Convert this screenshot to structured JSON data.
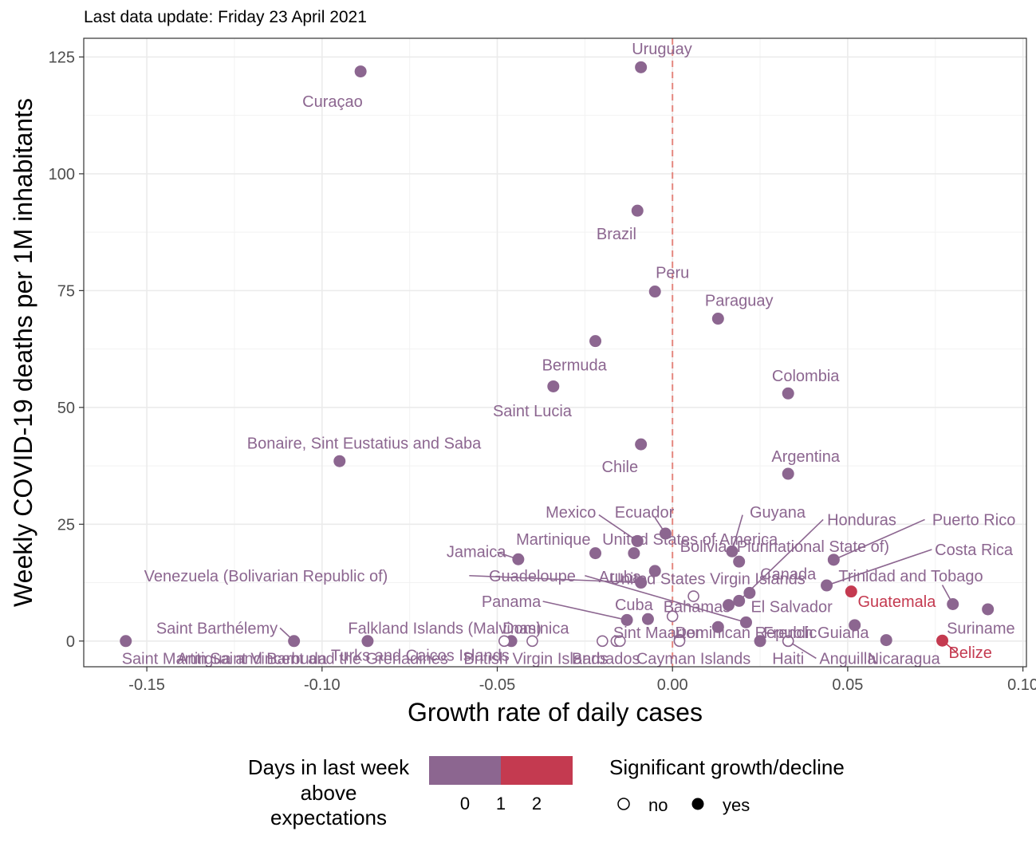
{
  "chart_data": {
    "type": "scatter",
    "subtitle": "Last data update: Friday 23 April 2021",
    "xlabel": "Growth rate of daily cases",
    "ylabel": "Weekly COVID-19 deaths per 1M inhabitants",
    "xlim": [
      -0.168,
      0.101
    ],
    "ylim": [
      -5.5,
      129
    ],
    "xticks": [
      -0.15,
      -0.1,
      -0.05,
      0.0,
      0.05,
      0.1
    ],
    "xtick_labels": [
      "-0.15",
      "-0.10",
      "-0.05",
      "0.00",
      "0.05",
      "0.10"
    ],
    "yticks": [
      0,
      25,
      50,
      75,
      100,
      125
    ],
    "ytick_labels": [
      "0",
      "25",
      "50",
      "75",
      "100",
      "125"
    ],
    "vline_x": 0,
    "grid": true,
    "colors": {
      "low": "#8C6690",
      "high": "#C43A50",
      "vline": "#E4877F"
    },
    "legend": {
      "color_title_lines": [
        "Days in last week",
        "above",
        "expectations"
      ],
      "color_ticks": [
        "0",
        "1",
        "2"
      ],
      "shape_title": "Significant growth/decline",
      "shape_items": [
        "no",
        "yes"
      ],
      "placement": "bottom"
    },
    "points": [
      {
        "name": "Uruguay",
        "x": -0.009,
        "y": 122.8,
        "days": 0,
        "sig": true
      },
      {
        "name": "Curaçao",
        "x": -0.089,
        "y": 121.9,
        "days": 0,
        "sig": true
      },
      {
        "name": "Brazil",
        "x": -0.01,
        "y": 92.1,
        "days": 0,
        "sig": true
      },
      {
        "name": "Peru",
        "x": -0.005,
        "y": 74.8,
        "days": 0,
        "sig": true
      },
      {
        "name": "Paraguay",
        "x": 0.013,
        "y": 69.0,
        "days": 0,
        "sig": true
      },
      {
        "name": "Bermuda",
        "x": -0.022,
        "y": 64.2,
        "days": 0,
        "sig": true
      },
      {
        "name": "Saint Lucia",
        "x": -0.034,
        "y": 54.5,
        "days": 0,
        "sig": true
      },
      {
        "name": "Colombia",
        "x": 0.033,
        "y": 53.0,
        "days": 0,
        "sig": true
      },
      {
        "name": "Chile",
        "x": -0.009,
        "y": 42.1,
        "days": 0,
        "sig": true
      },
      {
        "name": "Bonaire, Sint Eustatius and Saba",
        "x": -0.095,
        "y": 38.5,
        "days": 0,
        "sig": true
      },
      {
        "name": "Argentina",
        "x": 0.033,
        "y": 35.8,
        "days": 0,
        "sig": true
      },
      {
        "name": "Ecuador",
        "x": -0.002,
        "y": 23.0,
        "days": 0,
        "sig": true
      },
      {
        "name": "Mexico",
        "x": -0.01,
        "y": 21.4,
        "days": 0,
        "sig": true
      },
      {
        "name": "Guyana",
        "x": 0.017,
        "y": 19.2,
        "days": 0,
        "sig": true
      },
      {
        "name": "Martinique",
        "x": -0.022,
        "y": 18.8,
        "days": 0,
        "sig": true
      },
      {
        "name": "United States of America",
        "x": -0.011,
        "y": 18.8,
        "days": 0,
        "sig": true
      },
      {
        "name": "Jamaica",
        "x": -0.044,
        "y": 17.5,
        "days": 0,
        "sig": true
      },
      {
        "name": "Puerto Rico",
        "x": 0.046,
        "y": 17.4,
        "days": 0,
        "sig": true
      },
      {
        "name": "Bolivia (Plurinational State of)",
        "x": 0.019,
        "y": 17.0,
        "days": 0,
        "sig": true
      },
      {
        "name": "Aruba",
        "x": -0.005,
        "y": 15.0,
        "days": 0,
        "sig": true
      },
      {
        "name": "Venezuela (Bolivarian Republic of)",
        "x": -0.009,
        "y": 12.5,
        "days": 0,
        "sig": true
      },
      {
        "name": "Costa Rica",
        "x": 0.044,
        "y": 11.9,
        "days": 0,
        "sig": true
      },
      {
        "name": "Guatemala",
        "x": 0.051,
        "y": 10.6,
        "days": 2,
        "sig": true
      },
      {
        "name": "Canada",
        "x": 0.022,
        "y": 10.3,
        "days": 0,
        "sig": true
      },
      {
        "name": "United States Virgin Islands",
        "x": 0.006,
        "y": 9.6,
        "days": 0,
        "sig": false
      },
      {
        "name": "Honduras",
        "x": 0.019,
        "y": 8.6,
        "days": 0,
        "sig": true
      },
      {
        "name": "Trinidad and Tobago",
        "x": 0.08,
        "y": 7.9,
        "days": 0,
        "sig": true
      },
      {
        "name": "El Salvador",
        "x": 0.016,
        "y": 7.7,
        "days": 0,
        "sig": true
      },
      {
        "name": "Suriname",
        "x": 0.09,
        "y": 6.8,
        "days": 0,
        "sig": true
      },
      {
        "name": "Bahamas",
        "x": 0.0,
        "y": 5.3,
        "days": 0,
        "sig": false
      },
      {
        "name": "Cuba",
        "x": -0.007,
        "y": 4.7,
        "days": 0,
        "sig": true
      },
      {
        "name": "Panama",
        "x": -0.013,
        "y": 4.5,
        "days": 0,
        "sig": true
      },
      {
        "name": "Guadeloupe",
        "x": 0.021,
        "y": 4.0,
        "days": 0,
        "sig": true
      },
      {
        "name": "French Guiana",
        "x": 0.052,
        "y": 3.4,
        "days": 0,
        "sig": true
      },
      {
        "name": "Dominican Republic",
        "x": 0.013,
        "y": 3.0,
        "days": 0,
        "sig": true
      },
      {
        "name": "Saint Martin",
        "x": 0.002,
        "y": 0.3,
        "days": 0,
        "sig": false
      },
      {
        "name": "Nicaragua",
        "x": 0.061,
        "y": 0.2,
        "days": 0,
        "sig": true
      },
      {
        "name": "Belize",
        "x": 0.077,
        "y": 0.1,
        "days": 2,
        "sig": true
      },
      {
        "name": "Saint Barthélemy",
        "x": -0.108,
        "y": 0.0,
        "days": 0,
        "sig": true
      },
      {
        "name": "Saint Martin",
        "x": -0.156,
        "y": 0.0,
        "days": 0,
        "sig": true
      },
      {
        "name": "Falkland Islands (Malvinas)",
        "x": -0.087,
        "y": 0.0,
        "days": 0,
        "sig": true
      },
      {
        "name": "Dominica",
        "x": -0.046,
        "y": 0.0,
        "days": 0,
        "sig": true
      },
      {
        "name": "Antigua and Barbuda",
        "x": -0.048,
        "y": 0.0,
        "days": 0,
        "sig": false
      },
      {
        "name": "Saint Vincent and the Grenadines",
        "x": -0.04,
        "y": 0.0,
        "days": 0,
        "sig": false
      },
      {
        "name": "Turks and Caicos Islands",
        "x": -0.02,
        "y": 0.0,
        "days": 0,
        "sig": false
      },
      {
        "name": "British Virgin Islands",
        "x": -0.016,
        "y": 0.0,
        "days": 0,
        "sig": false
      },
      {
        "name": "Barbados",
        "x": -0.015,
        "y": 0.0,
        "days": 0,
        "sig": false
      },
      {
        "name": "Cayman Islands",
        "x": 0.002,
        "y": 0.0,
        "days": 0,
        "sig": false
      },
      {
        "name": "Sint Maarten",
        "x": 0.025,
        "y": 0.0,
        "days": 0,
        "sig": true
      },
      {
        "name": "Haiti",
        "x": 0.033,
        "y": 0.0,
        "days": 0,
        "sig": false
      },
      {
        "name": "Anguilla",
        "x": 0.033,
        "y": 0.0,
        "days": 0,
        "sig": false
      }
    ],
    "labels": [
      {
        "text": "Uruguay",
        "x": -0.003,
        "y": 126.8,
        "days": 0
      },
      {
        "text": "Curaçao",
        "x": -0.097,
        "y": 115.5,
        "days": 0
      },
      {
        "text": "Brazil",
        "x": -0.016,
        "y": 87.2,
        "days": 0
      },
      {
        "text": "Peru",
        "x": 0.0,
        "y": 78.9,
        "days": 0
      },
      {
        "text": "Paraguay",
        "x": 0.019,
        "y": 72.9,
        "days": 0
      },
      {
        "text": "Bermuda",
        "x": -0.028,
        "y": 59.1,
        "days": 0
      },
      {
        "text": "Saint Lucia",
        "x": -0.04,
        "y": 49.3,
        "days": 0
      },
      {
        "text": "Colombia",
        "x": 0.038,
        "y": 56.8,
        "days": 0
      },
      {
        "text": "Chile",
        "x": -0.015,
        "y": 37.3,
        "days": 0
      },
      {
        "text": "Bonaire, Sint Eustatius and Saba",
        "x": -0.088,
        "y": 42.4,
        "days": 0
      },
      {
        "text": "Argentina",
        "x": 0.038,
        "y": 39.6,
        "days": 0
      },
      {
        "text": "Mexico",
        "x": -0.029,
        "y": 27.6,
        "days": 0,
        "lx": -0.021,
        "ly": 27.0
      },
      {
        "text": "Ecuador",
        "x": -0.008,
        "y": 27.6,
        "days": 0,
        "lx": -0.005,
        "ly": 26.4
      },
      {
        "text": "Guyana",
        "x": 0.03,
        "y": 27.6,
        "days": 0,
        "lx": 0.02,
        "ly": 27.0
      },
      {
        "text": "Honduras",
        "x": 0.054,
        "y": 26.0,
        "days": 0,
        "lx": 0.043,
        "ly": 26.0
      },
      {
        "text": "Puerto Rico",
        "x": 0.086,
        "y": 26.0,
        "days": 0,
        "lx": 0.072,
        "ly": 26.0
      },
      {
        "text": "Martinique",
        "x": -0.034,
        "y": 21.8,
        "days": 0
      },
      {
        "text": "United States of America",
        "x": 0.005,
        "y": 21.8,
        "days": 0
      },
      {
        "text": "Bolivia (Plurinational State of)",
        "x": 0.032,
        "y": 20.3,
        "days": 0
      },
      {
        "text": "Jamaica",
        "x": -0.056,
        "y": 19.2,
        "days": 0,
        "lx": -0.05,
        "ly": 19.0
      },
      {
        "text": "Costa Rica",
        "x": 0.086,
        "y": 19.6,
        "days": 0,
        "lx": 0.074,
        "ly": 19.6
      },
      {
        "text": "Aruba",
        "x": -0.015,
        "y": 13.8,
        "days": 0
      },
      {
        "text": "Venezuela (Bolivarian Republic of)",
        "x": -0.116,
        "y": 14.0,
        "days": 0,
        "lx": -0.058,
        "ly": 14.0
      },
      {
        "text": "Guadeloupe",
        "x": -0.04,
        "y": 14.0,
        "days": 0,
        "lx": -0.025,
        "ly": 14.0
      },
      {
        "text": "United States Virgin Islands",
        "x": 0.01,
        "y": 13.4,
        "days": 0
      },
      {
        "text": "Canada",
        "x": 0.033,
        "y": 14.4,
        "days": 0
      },
      {
        "text": "Trinidad and Tobago",
        "x": 0.068,
        "y": 14.0,
        "days": 0,
        "lx": 0.077,
        "ly": 12.0
      },
      {
        "text": "Guatemala",
        "x": 0.064,
        "y": 8.5,
        "days": 2
      },
      {
        "text": "Panama",
        "x": -0.046,
        "y": 8.5,
        "days": 0,
        "lx": -0.037,
        "ly": 8.5
      },
      {
        "text": "Cuba",
        "x": -0.011,
        "y": 7.8,
        "days": 0
      },
      {
        "text": "Bahamas",
        "x": 0.007,
        "y": 7.4,
        "days": 0
      },
      {
        "text": "El Salvador",
        "x": 0.034,
        "y": 7.4,
        "days": 0
      },
      {
        "text": "Suriname",
        "x": 0.088,
        "y": 2.8,
        "days": 0
      },
      {
        "text": "Saint Barthélemy",
        "x": -0.13,
        "y": 2.8,
        "days": 0,
        "lx": -0.112,
        "ly": 2.8
      },
      {
        "text": "Falkland Islands (Malvinas)",
        "x": -0.065,
        "y": 2.8,
        "days": 0
      },
      {
        "text": "Dominica",
        "x": -0.039,
        "y": 2.8,
        "days": 0
      },
      {
        "text": "Sint Maarten",
        "x": -0.004,
        "y": 1.8,
        "days": 0
      },
      {
        "text": "Dominican Republic",
        "x": 0.021,
        "y": 1.8,
        "days": 0
      },
      {
        "text": "French Guiana",
        "x": 0.041,
        "y": 1.8,
        "days": 0
      },
      {
        "text": "Saint Martin",
        "x": -0.145,
        "y": -3.7,
        "days": 0
      },
      {
        "text": "Antigua and Barbuda",
        "x": -0.12,
        "y": -3.7,
        "days": 0
      },
      {
        "text": "Saint Vincent and the Grenadines",
        "x": -0.098,
        "y": -3.7,
        "days": 0
      },
      {
        "text": "Turks and Caicos Islands",
        "x": -0.072,
        "y": -3.0,
        "days": 0
      },
      {
        "text": "British Virgin Islands",
        "x": -0.039,
        "y": -3.7,
        "days": 0
      },
      {
        "text": "Barbados",
        "x": -0.019,
        "y": -3.7,
        "days": 0
      },
      {
        "text": "Cayman Islands",
        "x": 0.006,
        "y": -3.7,
        "days": 0
      },
      {
        "text": "Haiti",
        "x": 0.033,
        "y": -3.7,
        "days": 0
      },
      {
        "text": "Anguilla",
        "x": 0.05,
        "y": -3.7,
        "days": 0,
        "lx": 0.041,
        "ly": -3.7
      },
      {
        "text": "Nicaragua",
        "x": 0.066,
        "y": -3.7,
        "days": 0
      },
      {
        "text": "Belize",
        "x": 0.085,
        "y": -2.4,
        "days": 2,
        "lx": 0.081,
        "ly": -2.4
      }
    ]
  }
}
